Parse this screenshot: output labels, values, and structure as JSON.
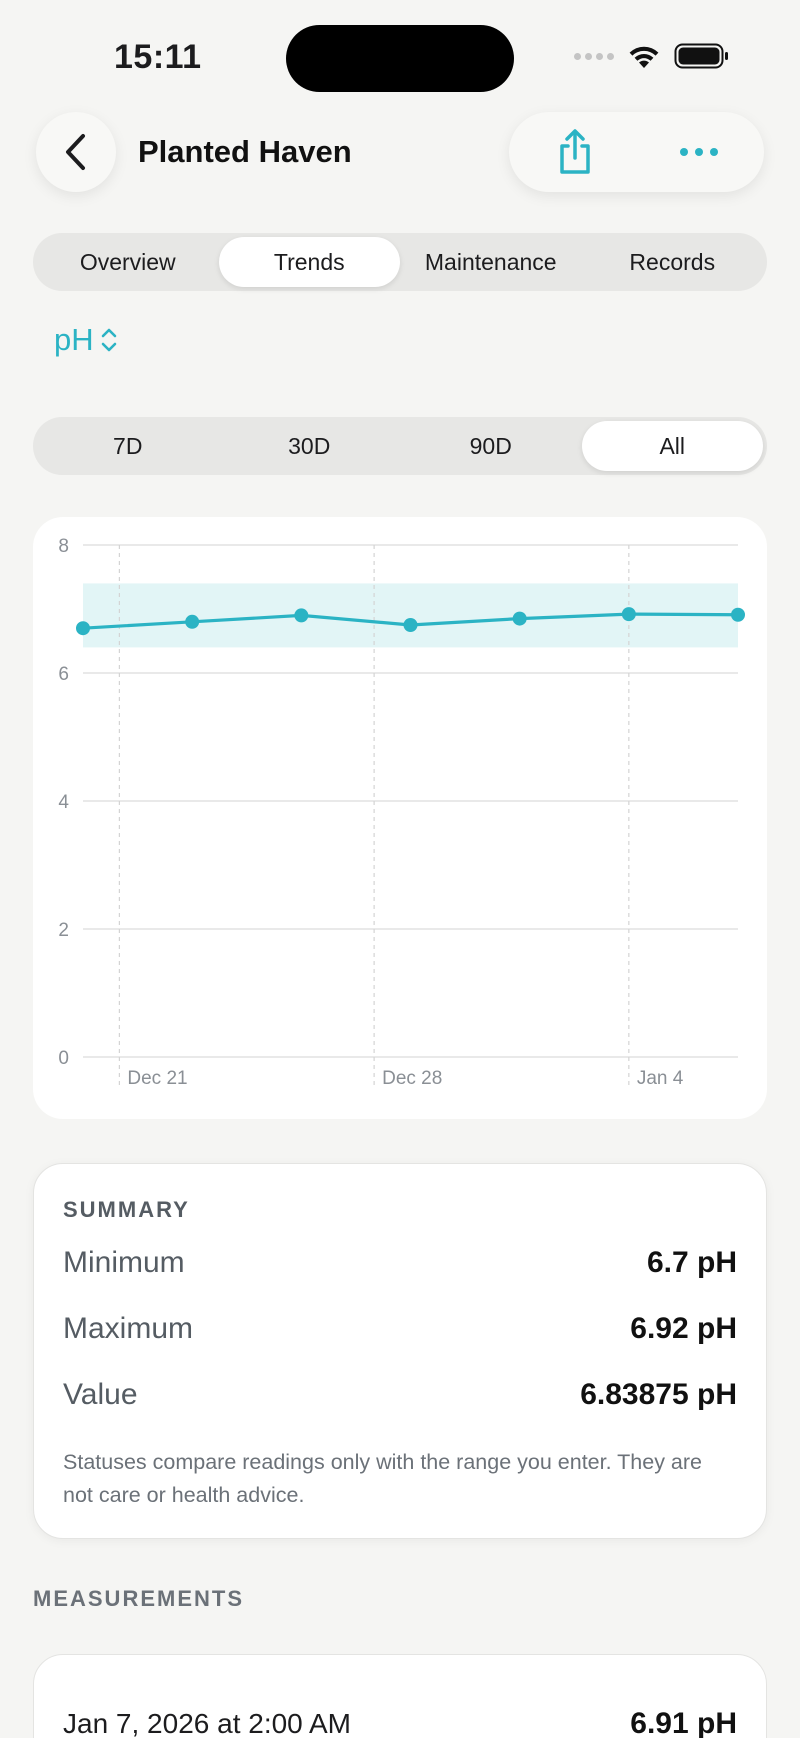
{
  "status_bar": {
    "time": "15:11"
  },
  "header": {
    "title": "Planted Haven"
  },
  "tabs": {
    "items": [
      {
        "label": "Overview",
        "active": false
      },
      {
        "label": "Trends",
        "active": true
      },
      {
        "label": "Maintenance",
        "active": false
      },
      {
        "label": "Records",
        "active": false
      }
    ]
  },
  "metric_selector": {
    "label": "pH"
  },
  "range_tabs": {
    "items": [
      {
        "label": "7D",
        "active": false
      },
      {
        "label": "30D",
        "active": false
      },
      {
        "label": "90D",
        "active": false
      },
      {
        "label": "All",
        "active": true
      }
    ]
  },
  "chart_data": {
    "type": "line",
    "x": [
      "2025-12-20",
      "2025-12-23",
      "2025-12-26",
      "2025-12-29",
      "2026-01-01",
      "2026-01-04",
      "2026-01-07"
    ],
    "series": [
      {
        "values": [
          6.7,
          6.8,
          6.9,
          6.75,
          6.85,
          6.92,
          6.91
        ]
      }
    ],
    "ylim": [
      0,
      8
    ],
    "yticks": [
      0,
      2,
      4,
      6,
      8
    ],
    "xticks": [
      {
        "date": "2025-12-21",
        "label": "Dec 21"
      },
      {
        "date": "2025-12-28",
        "label": "Dec 28"
      },
      {
        "date": "2026-01-04",
        "label": "Jan 4"
      }
    ],
    "xlim": [
      "2025-12-20",
      "2026-01-07"
    ],
    "target_range": [
      6.4,
      7.4
    ],
    "grid": true,
    "colors": {
      "line": "#2bb3c4",
      "band": "#e2f5f6",
      "grid": "#e2e2e2"
    }
  },
  "summary": {
    "heading": "SUMMARY",
    "rows": [
      {
        "label": "Minimum",
        "value": "6.7 pH"
      },
      {
        "label": "Maximum",
        "value": "6.92 pH"
      },
      {
        "label": "Value",
        "value": "6.83875 pH"
      }
    ],
    "note": "Statuses compare readings only with the range you enter. They are not care or health advice."
  },
  "measurements": {
    "heading": "MEASUREMENTS",
    "items": [
      {
        "date": "Jan 7, 2026 at 2:00 AM",
        "value": "6.91 pH"
      }
    ]
  },
  "colors": {
    "accent": "#2bb3c4",
    "background": "#f5f5f3"
  }
}
